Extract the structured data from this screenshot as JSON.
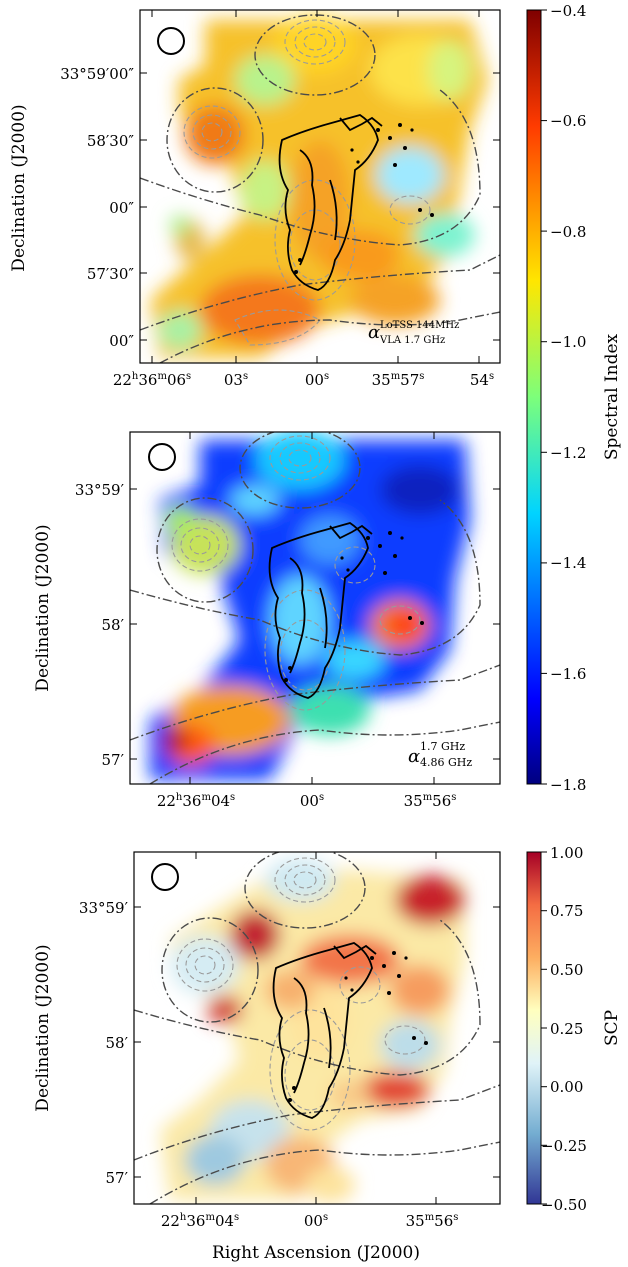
{
  "figure": {
    "x_axis_label": "Right Ascension (J2000)",
    "panels": [
      {
        "id": "alpha_lotss_vla",
        "y_axis_label": "Declination (J2000)",
        "annotation": {
          "symbol": "α",
          "sup": "LoTSS 144MHz",
          "sub": "VLA 1.7 GHz"
        },
        "x_ticks": [
          {
            "h": "22",
            "m": "36",
            "s": "06"
          },
          {
            "s": "03"
          },
          {
            "s": "00"
          },
          {
            "m": "35",
            "s": "57"
          },
          {
            "s": "54"
          }
        ],
        "y_ticks": [
          "33°59′00″",
          "58′30″",
          "00″",
          "57′30″",
          "00″"
        ],
        "colorbar": {
          "label": "Spectral Index",
          "scheme": "jet",
          "range": [
            -1.8,
            -0.4
          ],
          "ticks": [
            "−0.4",
            "−0.6",
            "−0.8",
            "−1.0",
            "−1.2",
            "−1.4",
            "−1.6",
            "−1.8"
          ]
        }
      },
      {
        "id": "alpha_vla_high",
        "y_axis_label": "Declination (J2000)",
        "annotation": {
          "symbol": "α",
          "sup": "1.7 GHz",
          "sub": "4.86 GHz"
        },
        "x_ticks": [
          {
            "h": "22",
            "m": "36",
            "s": "04"
          },
          {
            "s": "00"
          },
          {
            "m": "35",
            "s": "56"
          }
        ],
        "y_ticks": [
          "33°59′",
          "58′",
          "57′"
        ]
      },
      {
        "id": "scp",
        "y_axis_label": "Declination (J2000)",
        "annotation": null,
        "x_ticks": [
          {
            "h": "22",
            "m": "36",
            "s": "04"
          },
          {
            "s": "00"
          },
          {
            "m": "35",
            "s": "56"
          }
        ],
        "y_ticks": [
          "33°59′",
          "58′",
          "57′"
        ],
        "colorbar": {
          "label": "SCP",
          "scheme": "RdYlBu_r",
          "range": [
            -0.5,
            1.0
          ],
          "ticks": [
            "1.00",
            "0.75",
            "0.50",
            "0.25",
            "0.00",
            "−0.25",
            "−0.50"
          ]
        }
      }
    ]
  }
}
